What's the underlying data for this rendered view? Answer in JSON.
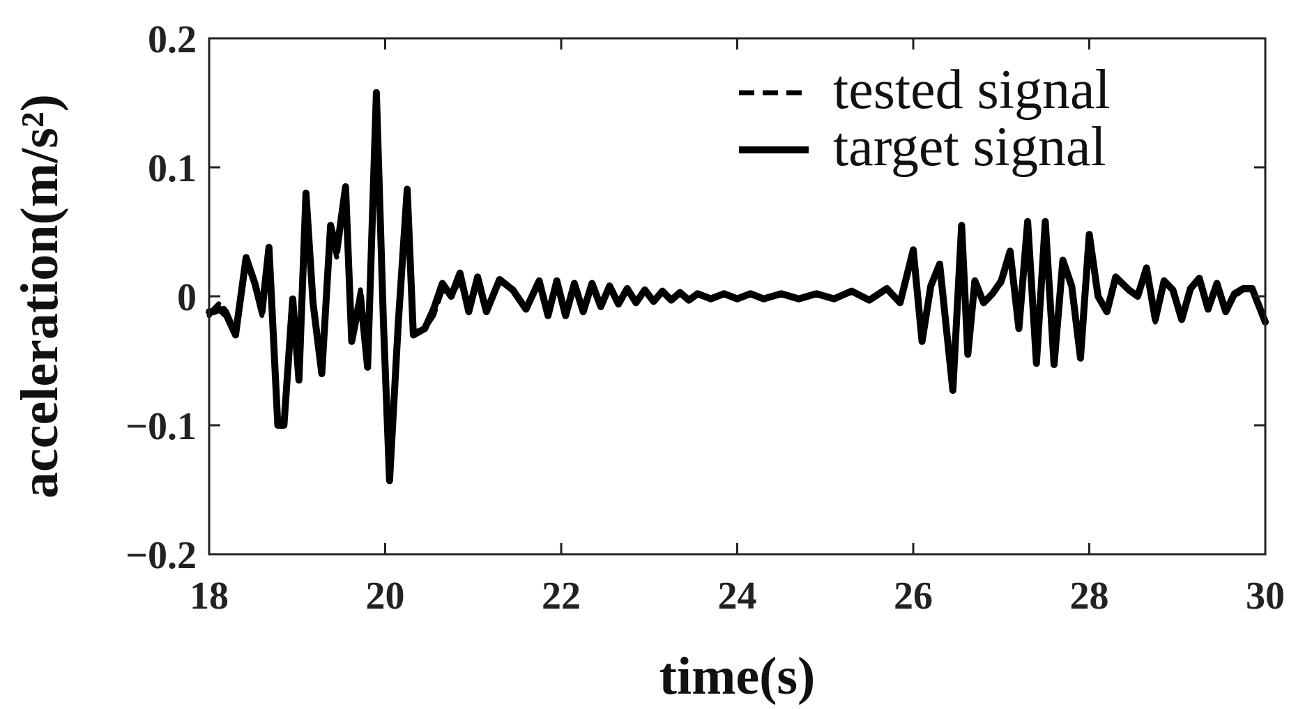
{
  "chart_data": {
    "type": "line",
    "xlabel": "time(s)",
    "ylabel": "acceleration(m/s²)",
    "xlim": [
      18,
      30
    ],
    "ylim": [
      -0.2,
      0.2
    ],
    "xticks": [
      18,
      20,
      22,
      24,
      26,
      28,
      30
    ],
    "xtick_labels": [
      "18",
      "20",
      "22",
      "24",
      "26",
      "28",
      "30"
    ],
    "yticks": [
      -0.2,
      -0.1,
      0,
      0.1,
      0.2
    ],
    "ytick_labels": [
      "−0.2",
      "−0.1",
      "0",
      "0.1",
      "0.2"
    ],
    "grid": false,
    "legend_position": "top-right",
    "series": [
      {
        "name": "tested signal",
        "style": "dashed",
        "color": "#000000",
        "x": [
          18.0,
          18.05,
          18.12,
          18.2,
          18.3,
          18.42,
          18.52,
          18.6,
          18.68,
          18.78,
          18.85,
          18.95,
          19.02,
          19.1,
          19.18,
          19.28,
          19.38,
          19.45,
          19.55,
          19.62,
          19.72,
          19.8,
          19.9,
          19.98,
          20.05,
          20.15,
          20.25,
          20.32,
          20.45,
          20.55,
          20.65,
          20.75,
          20.85,
          20.95,
          21.05,
          21.15,
          21.3,
          21.45,
          21.6,
          21.75,
          21.85,
          21.95,
          22.05,
          22.15,
          22.25,
          22.35,
          22.45,
          22.55,
          22.65,
          22.75,
          22.85,
          22.95,
          23.05,
          23.15,
          23.25,
          23.35,
          23.45,
          23.55,
          23.7,
          23.85,
          24.0,
          24.15,
          24.3,
          24.5,
          24.7,
          24.9,
          25.1,
          25.3,
          25.5,
          25.7,
          25.85,
          26.0,
          26.1,
          26.2,
          26.3,
          26.45,
          26.55,
          26.62,
          26.7,
          26.8,
          26.9,
          27.0,
          27.1,
          27.2,
          27.3,
          27.4,
          27.5,
          27.6,
          27.7,
          27.8,
          27.9,
          28.0,
          28.1,
          28.2,
          28.3,
          28.45,
          28.55,
          28.65,
          28.75,
          28.85,
          28.95,
          29.05,
          29.15,
          29.25,
          29.35,
          29.45,
          29.55,
          29.65,
          29.75,
          29.85,
          30.0
        ],
        "y": [
          -0.015,
          -0.01,
          -0.005,
          -0.012,
          -0.028,
          0.028,
          0.01,
          -0.015,
          0.035,
          -0.095,
          -0.1,
          -0.005,
          -0.06,
          0.078,
          -0.005,
          -0.055,
          0.05,
          0.03,
          0.08,
          -0.03,
          0.005,
          -0.05,
          0.154,
          -0.02,
          -0.14,
          -0.02,
          0.079,
          -0.028,
          -0.025,
          -0.015,
          0.005,
          0.0,
          0.012,
          -0.01,
          0.015,
          -0.01,
          0.012,
          0.004,
          -0.008,
          0.01,
          -0.012,
          0.01,
          -0.012,
          0.008,
          -0.01,
          0.008,
          -0.006,
          0.006,
          -0.005,
          0.005,
          -0.004,
          0.004,
          -0.004,
          0.003,
          -0.003,
          0.002,
          -0.002,
          0.002,
          -0.001,
          0.002,
          -0.001,
          0.002,
          -0.002,
          0.002,
          -0.002,
          0.002,
          -0.002,
          0.003,
          -0.002,
          0.005,
          -0.005,
          0.035,
          -0.03,
          0.01,
          0.02,
          -0.07,
          0.052,
          -0.04,
          0.01,
          -0.005,
          0.003,
          0.01,
          0.03,
          -0.02,
          0.055,
          -0.05,
          0.055,
          -0.05,
          0.025,
          0.01,
          -0.045,
          0.045,
          0.0,
          -0.01,
          0.012,
          0.005,
          0.0,
          0.02,
          -0.02,
          0.01,
          0.005,
          -0.015,
          0.005,
          0.012,
          -0.008,
          0.008,
          -0.01,
          0.0,
          0.005,
          0.005,
          -0.018
        ]
      },
      {
        "name": "target signal",
        "style": "solid",
        "color": "#000000",
        "x": [
          18.0,
          18.05,
          18.12,
          18.2,
          18.3,
          18.42,
          18.52,
          18.6,
          18.68,
          18.78,
          18.85,
          18.95,
          19.02,
          19.1,
          19.18,
          19.28,
          19.38,
          19.45,
          19.55,
          19.62,
          19.72,
          19.8,
          19.9,
          19.98,
          20.05,
          20.15,
          20.25,
          20.32,
          20.45,
          20.55,
          20.65,
          20.75,
          20.85,
          20.95,
          21.05,
          21.15,
          21.3,
          21.45,
          21.6,
          21.75,
          21.85,
          21.95,
          22.05,
          22.15,
          22.25,
          22.35,
          22.45,
          22.55,
          22.65,
          22.75,
          22.85,
          22.95,
          23.05,
          23.15,
          23.25,
          23.35,
          23.45,
          23.55,
          23.7,
          23.85,
          24.0,
          24.15,
          24.3,
          24.5,
          24.7,
          24.9,
          25.1,
          25.3,
          25.5,
          25.7,
          25.85,
          26.0,
          26.1,
          26.2,
          26.3,
          26.45,
          26.55,
          26.62,
          26.7,
          26.8,
          26.9,
          27.0,
          27.1,
          27.2,
          27.3,
          27.4,
          27.5,
          27.6,
          27.7,
          27.8,
          27.9,
          28.0,
          28.1,
          28.2,
          28.3,
          28.45,
          28.55,
          28.65,
          28.75,
          28.85,
          28.95,
          29.05,
          29.15,
          29.25,
          29.35,
          29.45,
          29.55,
          29.65,
          29.75,
          29.85,
          30.0
        ],
        "y": [
          -0.012,
          -0.012,
          -0.01,
          -0.015,
          -0.03,
          0.03,
          0.01,
          -0.012,
          0.038,
          -0.1,
          -0.1,
          -0.002,
          -0.065,
          0.08,
          -0.005,
          -0.06,
          0.055,
          0.035,
          0.085,
          -0.035,
          0.0,
          -0.055,
          0.158,
          -0.02,
          -0.143,
          -0.02,
          0.083,
          -0.03,
          -0.025,
          -0.01,
          0.01,
          0.0,
          0.018,
          -0.012,
          0.015,
          -0.012,
          0.013,
          0.005,
          -0.01,
          0.012,
          -0.015,
          0.012,
          -0.015,
          0.01,
          -0.012,
          0.01,
          -0.008,
          0.008,
          -0.006,
          0.006,
          -0.005,
          0.005,
          -0.004,
          0.004,
          -0.003,
          0.003,
          -0.003,
          0.002,
          -0.002,
          0.002,
          -0.002,
          0.002,
          -0.002,
          0.002,
          -0.002,
          0.002,
          -0.002,
          0.004,
          -0.003,
          0.006,
          -0.005,
          0.036,
          -0.035,
          0.008,
          0.025,
          -0.073,
          0.055,
          -0.045,
          0.012,
          -0.005,
          0.002,
          0.012,
          0.035,
          -0.025,
          0.058,
          -0.052,
          0.058,
          -0.053,
          0.028,
          0.008,
          -0.048,
          0.048,
          0.0,
          -0.012,
          0.015,
          0.005,
          0.0,
          0.022,
          -0.018,
          0.012,
          0.005,
          -0.018,
          0.006,
          0.014,
          -0.01,
          0.01,
          -0.012,
          0.002,
          0.006,
          0.006,
          -0.02
        ]
      }
    ]
  }
}
